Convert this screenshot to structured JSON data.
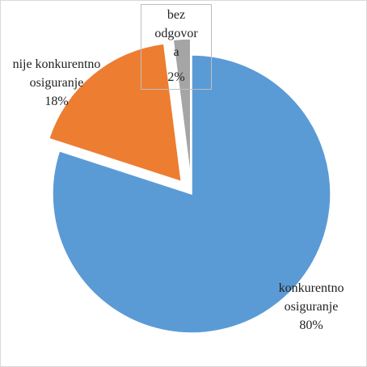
{
  "chart_data": {
    "type": "pie",
    "categories": [
      "konkurentno osiguranje",
      "nije konkurentno osiguranje",
      "bez odgovora"
    ],
    "values": [
      80,
      18,
      2
    ],
    "value_labels": [
      "80%",
      "18%",
      "2%"
    ],
    "colors": [
      "#5b9bd5",
      "#ed7d31",
      "#a5a5a5"
    ],
    "exploded": [
      false,
      true,
      true
    ]
  }
}
